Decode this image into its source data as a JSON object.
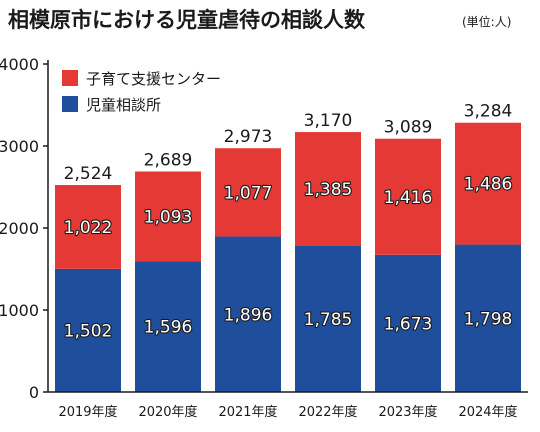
{
  "chart_data": {
    "type": "bar",
    "stacked": true,
    "title": "相模原市における児童虐待の相談人数",
    "subtitle": "(単位:人)",
    "categories": [
      "2019年度",
      "2020年度",
      "2021年度",
      "2022年度",
      "2023年度",
      "2024年度"
    ],
    "series": [
      {
        "name": "児童相談所",
        "color": "#1f4e9c",
        "values": [
          1502,
          1596,
          1896,
          1785,
          1673,
          1798
        ],
        "labels": [
          "1,502",
          "1,596",
          "1,896",
          "1,785",
          "1,673",
          "1,798"
        ]
      },
      {
        "name": "子育て支援センター",
        "color": "#e53935",
        "values": [
          1022,
          1093,
          1077,
          1385,
          1416,
          1486
        ],
        "labels": [
          "1,022",
          "1,093",
          "1,077",
          "1,385",
          "1,416",
          "1,486"
        ]
      }
    ],
    "totals": [
      2524,
      2689,
      2973,
      3170,
      3089,
      3284
    ],
    "total_labels": [
      "2,524",
      "2,689",
      "2,973",
      "3,170",
      "3,089",
      "3,284"
    ],
    "ylim": [
      0,
      4000
    ],
    "yticks": [
      0,
      1000,
      2000,
      3000,
      4000
    ],
    "grid": false,
    "legend": {
      "placement": "top-left",
      "items": [
        {
          "label": "子育て支援センター",
          "color": "#e53935"
        },
        {
          "label": "児童相談所",
          "color": "#1f4e9c"
        }
      ]
    }
  }
}
